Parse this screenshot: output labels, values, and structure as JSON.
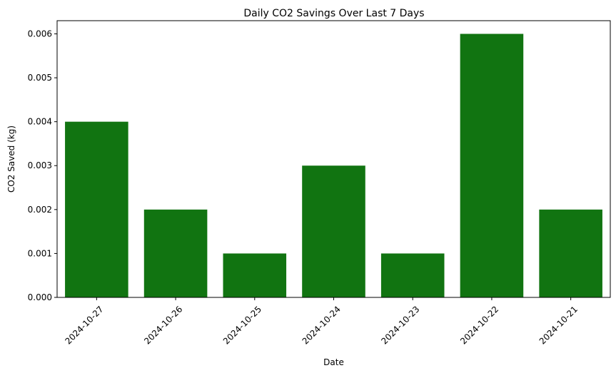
{
  "chart_data": {
    "type": "bar",
    "title": "Daily CO2 Savings Over Last 7 Days",
    "xlabel": "Date",
    "ylabel": "CO2 Saved (kg)",
    "categories": [
      "2024-10-27",
      "2024-10-26",
      "2024-10-25",
      "2024-10-24",
      "2024-10-23",
      "2024-10-22",
      "2024-10-21"
    ],
    "values": [
      0.004,
      0.002,
      0.001,
      0.003,
      0.001,
      0.006,
      0.002
    ],
    "ylim": [
      0,
      0.0063
    ],
    "yticks": [
      "0.000",
      "0.001",
      "0.002",
      "0.003",
      "0.004",
      "0.005",
      "0.006"
    ],
    "bar_color": "#117411",
    "grid": false,
    "legend": "none"
  }
}
